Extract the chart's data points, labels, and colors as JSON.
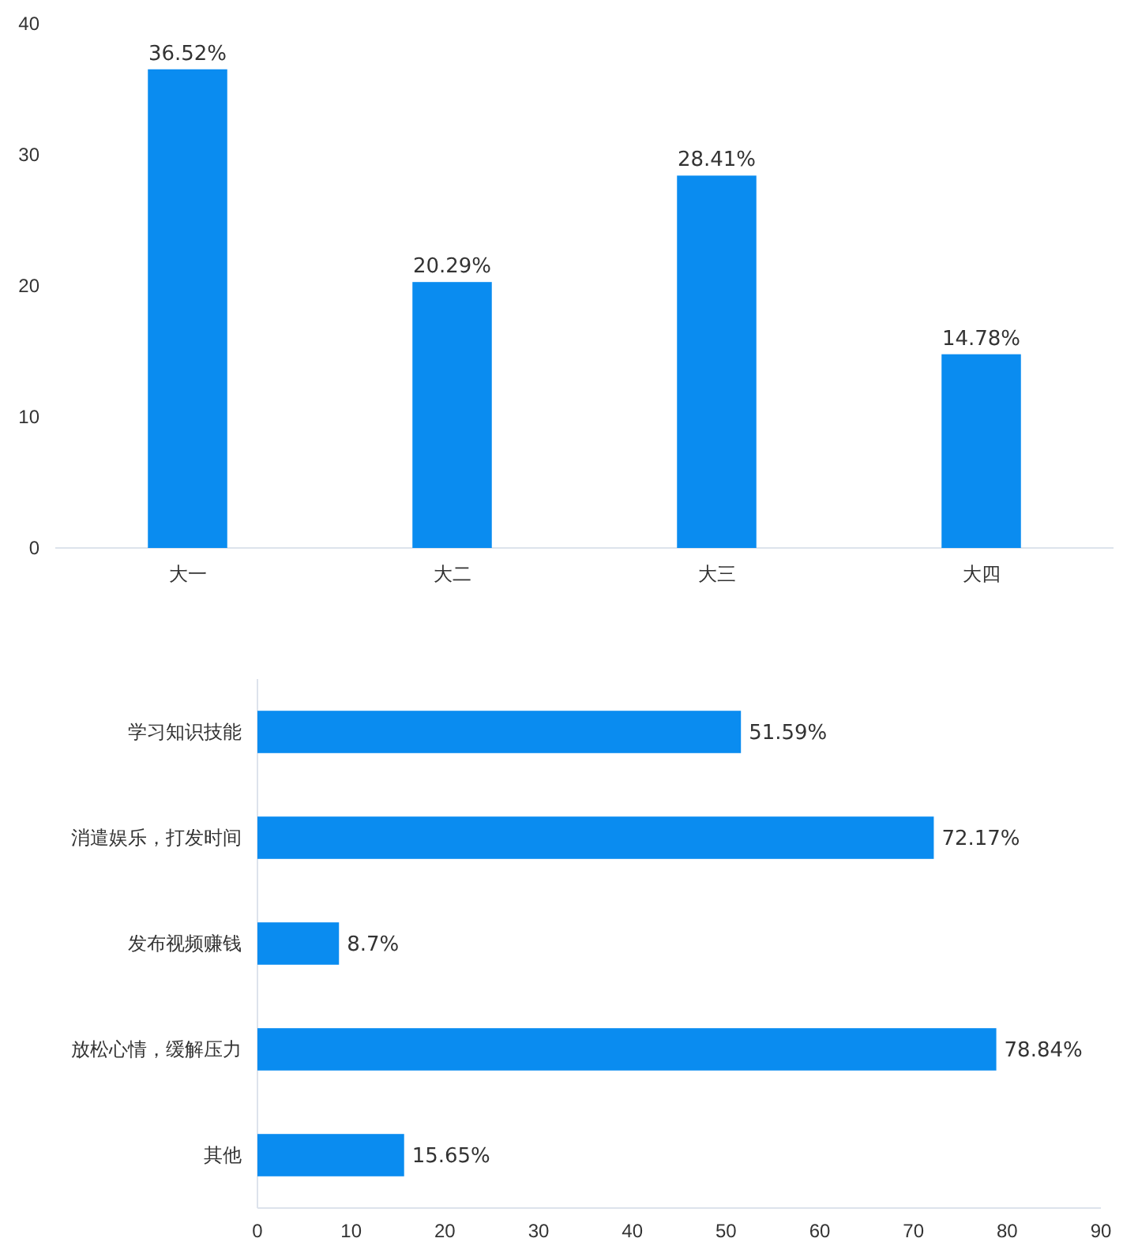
{
  "chart_data": [
    {
      "type": "bar",
      "categories": [
        "大一",
        "大二",
        "大三",
        "大四"
      ],
      "series": [
        {
          "color": "#0a8cf0",
          "values": [
            36.52,
            20.29,
            28.41,
            14.78
          ],
          "value_labels": [
            "36.52%",
            "20.29%",
            "28.41%",
            "14.78%"
          ]
        }
      ],
      "ylim": [
        0,
        40
      ],
      "yticks": [
        0,
        10,
        20,
        30,
        40
      ],
      "grid": false
    },
    {
      "type": "bar",
      "orientation": "horizontal",
      "categories": [
        "学习知识技能",
        "消遣娱乐，打发时间",
        "发布视频赚钱",
        "放松心情，缓解压力",
        "其他"
      ],
      "series": [
        {
          "color": "#0a8cf0",
          "values": [
            51.59,
            72.17,
            8.7,
            78.84,
            15.65
          ],
          "value_labels": [
            "51.59%",
            "72.17%",
            "8.7%",
            "78.84%",
            "15.65%"
          ]
        }
      ],
      "xlim": [
        0,
        90
      ],
      "xticks": [
        0,
        10,
        20,
        30,
        40,
        50,
        60,
        70,
        80,
        90
      ],
      "grid": false
    }
  ]
}
